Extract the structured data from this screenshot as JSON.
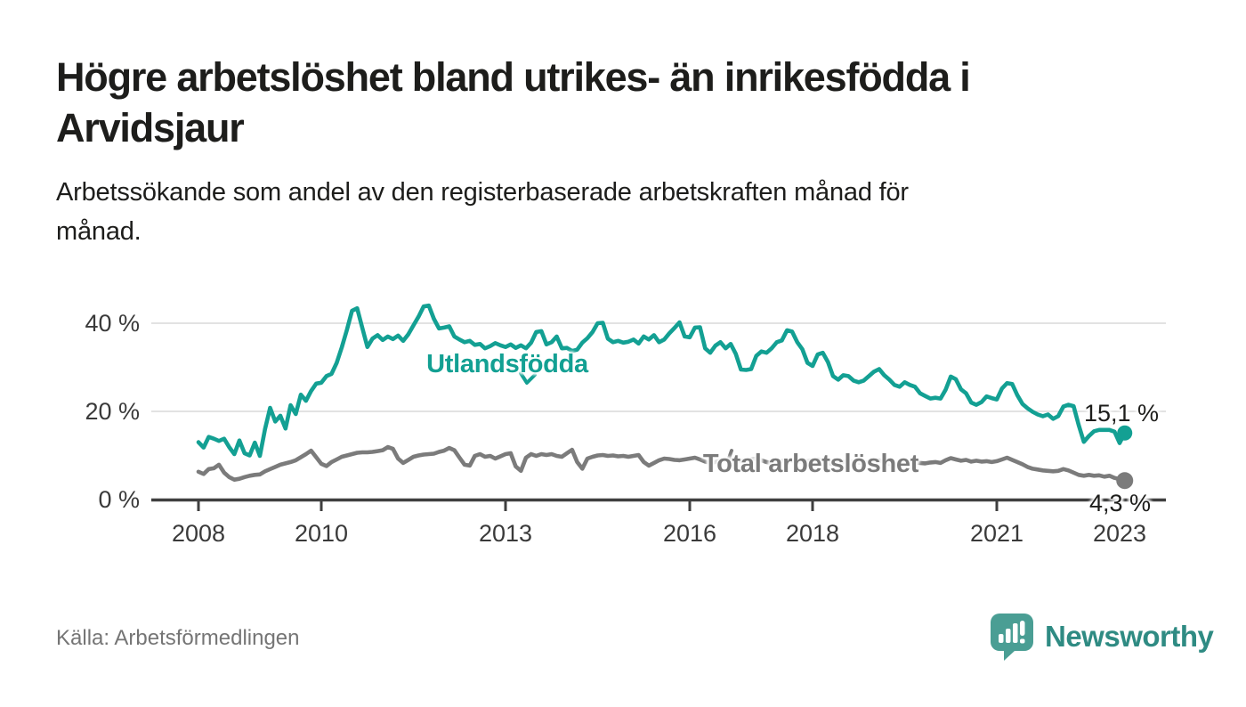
{
  "page": {
    "title": "Högre arbetslöshet bland utrikes- än inrikesfödda i\nArvidsjaur",
    "subtitle": "Arbetssökande som andel av den registerbaserade arbetskraften månad för\nmånad.",
    "source": "Källa: Arbetsförmedlingen"
  },
  "brand": {
    "name": "Newsworthy",
    "icon": "newsworthy-speech-bubble-bar-chart-icon",
    "bubble_color": "#4a9e94",
    "wordmark_color": "#2f8b83"
  },
  "colors": {
    "series_foreign": "#13a093",
    "series_total": "#7b7b7b",
    "grid": "#d9d9d9",
    "axis": "#3f3f3f",
    "text": "#1d1d1b",
    "muted_text": "#757575"
  },
  "chart_data": {
    "type": "line",
    "title": "Arbetssökande som andel av den registerbaserade arbetskraften månad för månad",
    "unit": "%",
    "frequency": "monthly",
    "start": "2008-01",
    "end": "2023-02",
    "x_tick_years": [
      2008,
      2010,
      2013,
      2016,
      2018,
      2021,
      2023
    ],
    "y_ticks": [
      {
        "value": 0,
        "label": "0 %"
      },
      {
        "value": 20,
        "label": "20 %"
      },
      {
        "value": 40,
        "label": "40 %"
      }
    ],
    "ylim": [
      0,
      46
    ],
    "grid": "horizontal-only",
    "legend": "inline-labels-on-lines",
    "series": [
      {
        "name": "Utlandsfödda",
        "color": "#13a093",
        "end_label": "15,1 %",
        "end_value": 15.1,
        "values": [
          13.0,
          11.8,
          14.2,
          13.8,
          13.3,
          13.8,
          11.9,
          10.3,
          13.4,
          10.5,
          10.0,
          12.9,
          9.9,
          16.0,
          20.8,
          17.7,
          19.0,
          16.1,
          21.4,
          19.4,
          23.8,
          22.4,
          24.6,
          26.3,
          26.5,
          28.0,
          28.5,
          31.0,
          34.5,
          38.5,
          42.8,
          43.4,
          39.0,
          34.6,
          36.5,
          37.3,
          36.2,
          37.0,
          36.4,
          37.2,
          36.0,
          37.5,
          39.5,
          41.5,
          43.8,
          44.0,
          41.0,
          38.8,
          39.0,
          39.3,
          37.0,
          36.3,
          35.7,
          36.0,
          35.1,
          35.3,
          34.3,
          34.8,
          35.5,
          35.0,
          34.6,
          35.2,
          34.4,
          35.0,
          34.3,
          35.6,
          38.0,
          38.2,
          35.2,
          35.7,
          37.0,
          34.3,
          34.4,
          33.7,
          34.0,
          35.6,
          36.6,
          38.0,
          40.0,
          40.1,
          36.5,
          35.7,
          36.0,
          35.6,
          35.8,
          36.3,
          35.4,
          37.0,
          36.3,
          37.3,
          35.7,
          36.3,
          37.7,
          38.9,
          40.2,
          37.0,
          36.8,
          39.0,
          39.1,
          34.3,
          33.3,
          34.9,
          35.7,
          34.3,
          35.3,
          33.0,
          29.5,
          29.4,
          29.6,
          32.6,
          33.6,
          33.3,
          34.3,
          35.7,
          36.1,
          38.4,
          38.1,
          35.7,
          34.1,
          31.0,
          30.3,
          32.9,
          33.3,
          31.2,
          28.0,
          27.2,
          28.2,
          28.0,
          27.0,
          26.6,
          27.0,
          28.0,
          29.0,
          29.6,
          28.2,
          27.2,
          26.0,
          25.6,
          26.6,
          26.0,
          25.6,
          24.1,
          23.5,
          22.9,
          23.1,
          22.9,
          24.9,
          27.9,
          27.3,
          25.0,
          24.1,
          22.0,
          21.5,
          22.1,
          23.4,
          23.0,
          22.7,
          25.2,
          26.4,
          26.2,
          23.7,
          21.7,
          20.7,
          19.9,
          19.3,
          18.9,
          19.3,
          18.3,
          18.9,
          21.1,
          21.5,
          21.2,
          16.9,
          13.1,
          14.4,
          15.5,
          15.8,
          15.8,
          15.8,
          15.4,
          12.8,
          15.1
        ]
      },
      {
        "name": "Total arbetslöshet",
        "color": "#7b7b7b",
        "end_label": "4,3 %",
        "end_value": 4.3,
        "values": [
          6.3,
          5.8,
          6.9,
          7.1,
          7.9,
          6.1,
          5.1,
          4.5,
          4.7,
          5.1,
          5.4,
          5.6,
          5.7,
          6.4,
          6.9,
          7.4,
          7.9,
          8.2,
          8.5,
          8.9,
          9.6,
          10.3,
          11.1,
          9.6,
          8.1,
          7.6,
          8.5,
          9.1,
          9.7,
          10.0,
          10.3,
          10.6,
          10.7,
          10.7,
          10.8,
          11.0,
          11.2,
          11.9,
          11.5,
          9.3,
          8.3,
          9.0,
          9.7,
          10.0,
          10.2,
          10.3,
          10.4,
          10.8,
          11.1,
          11.7,
          11.2,
          9.5,
          7.9,
          7.7,
          9.9,
          10.3,
          9.7,
          9.9,
          9.3,
          9.8,
          10.3,
          10.5,
          7.5,
          6.5,
          9.5,
          10.3,
          9.9,
          10.3,
          10.1,
          10.3,
          9.9,
          9.7,
          10.5,
          11.3,
          8.5,
          7.0,
          9.3,
          9.7,
          10.0,
          10.1,
          9.9,
          10.0,
          9.8,
          9.9,
          9.7,
          9.9,
          10.1,
          8.5,
          7.7,
          8.3,
          8.9,
          9.3,
          9.2,
          9.0,
          8.9,
          9.1,
          9.3,
          9.5,
          9.1,
          8.6,
          8.3,
          8.5,
          8.9,
          9.1,
          9.0,
          8.8,
          8.7,
          8.9,
          9.1,
          9.3,
          8.9,
          8.5,
          8.2,
          8.4,
          8.7,
          8.9,
          8.8,
          8.6,
          8.5,
          8.7,
          8.9,
          9.1,
          8.7,
          8.3,
          8.0,
          8.2,
          8.5,
          8.7,
          8.6,
          8.4,
          8.3,
          8.5,
          8.7,
          8.9,
          8.5,
          8.1,
          7.9,
          8.0,
          8.3,
          8.5,
          8.4,
          8.3,
          8.2,
          8.4,
          8.5,
          8.3,
          8.9,
          9.4,
          9.1,
          8.8,
          9.0,
          8.6,
          8.8,
          8.6,
          8.7,
          8.5,
          8.7,
          9.1,
          9.5,
          9.0,
          8.5,
          8.0,
          7.4,
          7.0,
          6.8,
          6.6,
          6.5,
          6.4,
          6.5,
          6.9,
          6.6,
          6.1,
          5.6,
          5.4,
          5.6,
          5.4,
          5.5,
          5.2,
          5.4,
          4.9,
          4.6,
          4.3
        ]
      }
    ]
  }
}
